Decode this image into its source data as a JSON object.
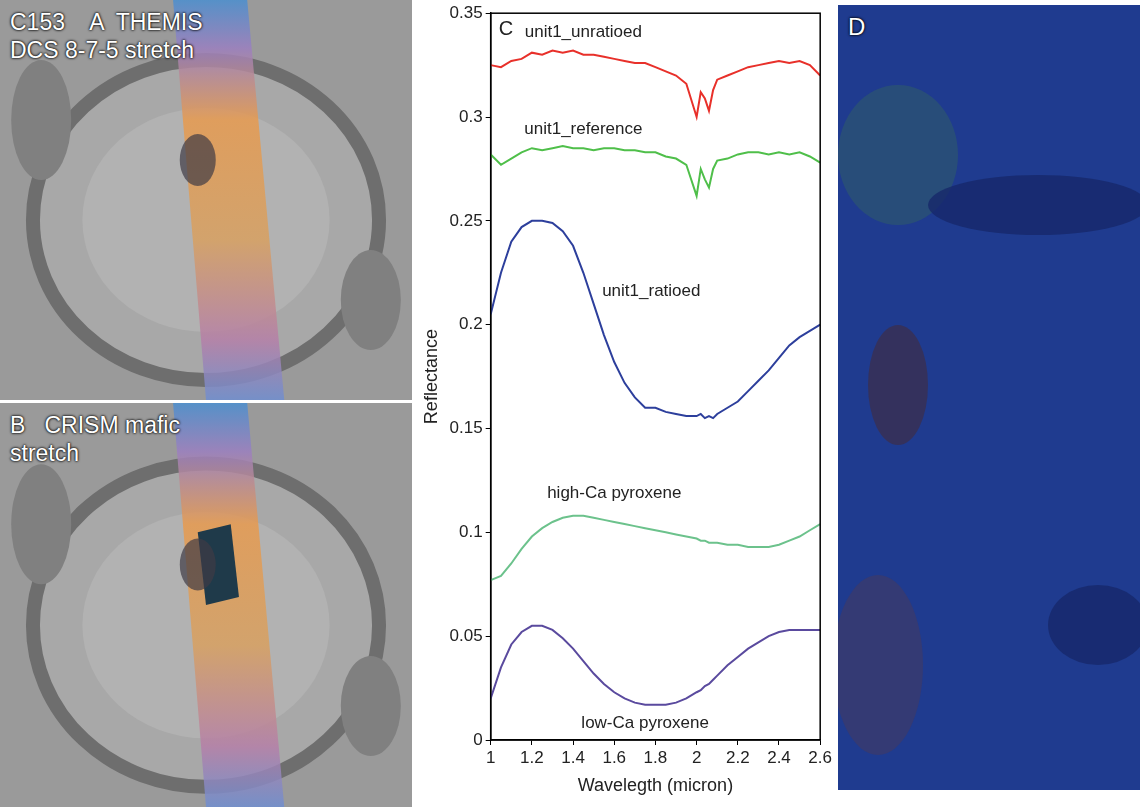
{
  "chart_data": {
    "type": "line",
    "x_label": "Wavelegth (micron)",
    "y_label": "Reflectance",
    "x": [
      1.0,
      1.05,
      1.1,
      1.15,
      1.2,
      1.25,
      1.3,
      1.35,
      1.4,
      1.45,
      1.5,
      1.55,
      1.6,
      1.65,
      1.7,
      1.75,
      1.8,
      1.85,
      1.9,
      1.95,
      2.0,
      2.02,
      2.04,
      2.06,
      2.08,
      2.1,
      2.15,
      2.2,
      2.25,
      2.3,
      2.35,
      2.4,
      2.45,
      2.5,
      2.55,
      2.6
    ],
    "series": [
      {
        "name": "unit1_unratioed",
        "color": "#e8302a",
        "marker": "none",
        "line_style": "solid",
        "values": [
          0.325,
          0.324,
          0.327,
          0.328,
          0.331,
          0.33,
          0.332,
          0.331,
          0.332,
          0.33,
          0.33,
          0.329,
          0.328,
          0.327,
          0.326,
          0.326,
          0.324,
          0.322,
          0.32,
          0.316,
          0.3,
          0.312,
          0.309,
          0.303,
          0.313,
          0.318,
          0.32,
          0.322,
          0.324,
          0.325,
          0.326,
          0.327,
          0.326,
          0.327,
          0.325,
          0.32
        ]
      },
      {
        "name": "unit1_reference",
        "color": "#4fbf4a",
        "marker": "none",
        "line_style": "solid",
        "values": [
          0.282,
          0.277,
          0.28,
          0.283,
          0.285,
          0.284,
          0.285,
          0.286,
          0.285,
          0.285,
          0.284,
          0.285,
          0.285,
          0.284,
          0.284,
          0.283,
          0.283,
          0.281,
          0.28,
          0.277,
          0.262,
          0.275,
          0.27,
          0.266,
          0.275,
          0.279,
          0.28,
          0.282,
          0.283,
          0.283,
          0.282,
          0.283,
          0.282,
          0.283,
          0.281,
          0.278
        ]
      },
      {
        "name": "unit1_ratioed",
        "color": "#2d3f9c",
        "marker": "none",
        "line_style": "solid",
        "values": [
          0.205,
          0.225,
          0.24,
          0.247,
          0.25,
          0.25,
          0.249,
          0.245,
          0.238,
          0.225,
          0.21,
          0.195,
          0.182,
          0.172,
          0.165,
          0.16,
          0.16,
          0.158,
          0.157,
          0.156,
          0.156,
          0.157,
          0.155,
          0.156,
          0.155,
          0.157,
          0.16,
          0.163,
          0.168,
          0.173,
          0.178,
          0.184,
          0.19,
          0.194,
          0.197,
          0.2
        ]
      },
      {
        "name": "high-Ca pyroxene",
        "color": "#6cc28c",
        "marker": "none",
        "line_style": "solid",
        "values": [
          0.077,
          0.079,
          0.085,
          0.092,
          0.098,
          0.102,
          0.105,
          0.107,
          0.108,
          0.108,
          0.107,
          0.106,
          0.105,
          0.104,
          0.103,
          0.102,
          0.101,
          0.1,
          0.099,
          0.098,
          0.097,
          0.096,
          0.096,
          0.095,
          0.095,
          0.095,
          0.094,
          0.094,
          0.093,
          0.093,
          0.093,
          0.094,
          0.096,
          0.098,
          0.101,
          0.104
        ]
      },
      {
        "name": "low-Ca pyroxene",
        "color": "#5a4a9e",
        "marker": "none",
        "line_style": "solid",
        "values": [
          0.02,
          0.035,
          0.046,
          0.052,
          0.055,
          0.055,
          0.053,
          0.049,
          0.044,
          0.038,
          0.032,
          0.027,
          0.023,
          0.02,
          0.018,
          0.017,
          0.017,
          0.017,
          0.018,
          0.02,
          0.023,
          0.024,
          0.026,
          0.027,
          0.029,
          0.031,
          0.036,
          0.04,
          0.044,
          0.047,
          0.05,
          0.052,
          0.053,
          0.053,
          0.053,
          0.053
        ]
      }
    ],
    "annotations": [
      {
        "text": "unit1_unratioed",
        "x": 1.45,
        "y": 0.341
      },
      {
        "text": "unit1_reference",
        "x": 1.45,
        "y": 0.294
      },
      {
        "text": "unit1_ratioed",
        "x": 1.78,
        "y": 0.216
      },
      {
        "text": "high-Ca pyroxene",
        "x": 1.6,
        "y": 0.119
      },
      {
        "text": "low-Ca pyroxene",
        "x": 1.75,
        "y": 0.008
      }
    ],
    "xlim": [
      1,
      2.6
    ],
    "xticks": [
      1,
      1.2,
      1.4,
      1.6,
      1.8,
      2,
      2.2,
      2.4,
      2.6
    ],
    "ylim": [
      0,
      0.35
    ],
    "yticks": [
      0,
      0.05,
      0.1,
      0.15,
      0.2,
      0.25,
      0.3,
      0.35
    ],
    "grid": false
  },
  "panels": {
    "A": {
      "lines": [
        "C153    A  THEMIS",
        "DCS 8-7-5 stretch"
      ]
    },
    "B": {
      "lines": [
        "B   CRISM mafic",
        "stretch"
      ]
    },
    "C": {
      "lines": [
        "C"
      ]
    },
    "D": {
      "lines": [
        "D"
      ]
    }
  }
}
